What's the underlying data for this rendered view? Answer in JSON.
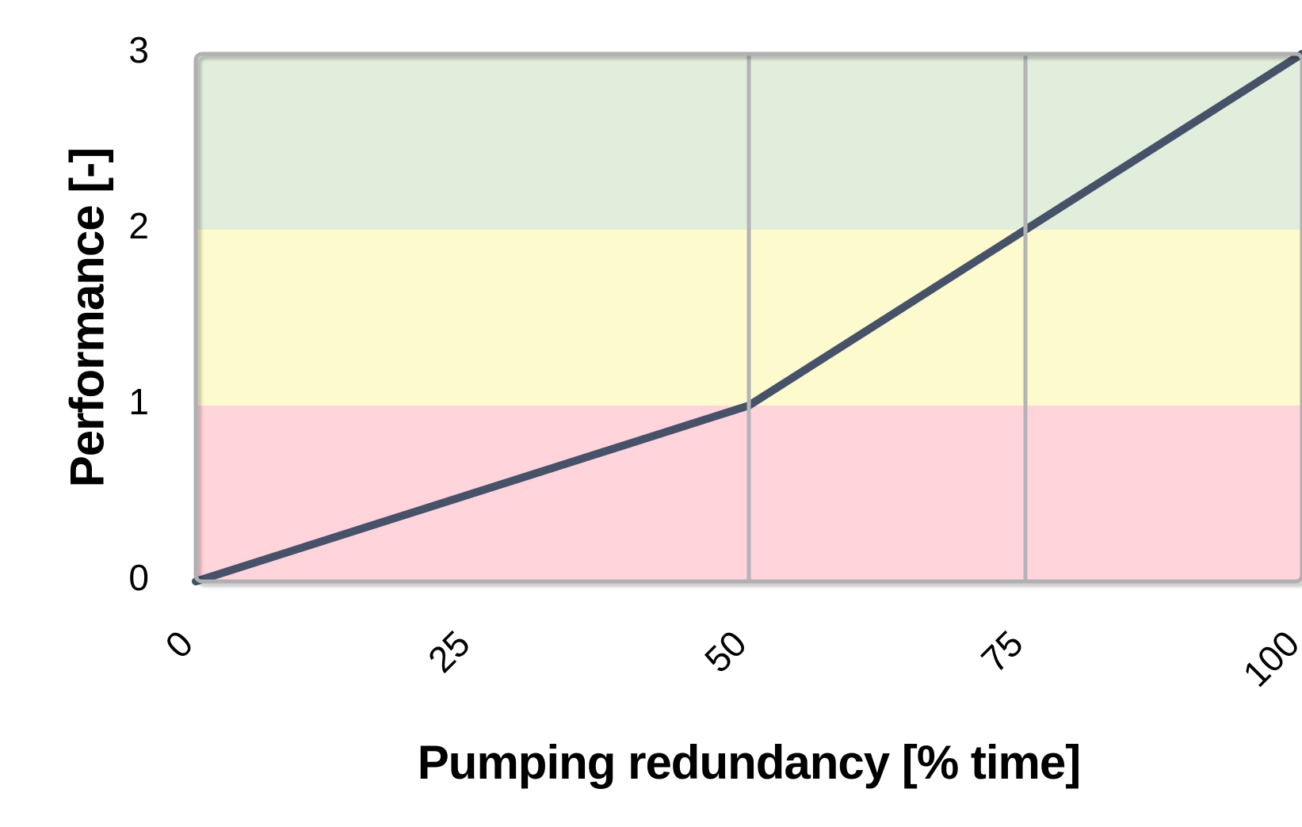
{
  "chart_data": {
    "type": "line",
    "title": "",
    "xlabel": "Pumping redundancy [% time]",
    "ylabel": "Performance [-]",
    "xlim": [
      0,
      100
    ],
    "ylim": [
      0,
      3
    ],
    "x_ticks": [
      0,
      25,
      50,
      75,
      100
    ],
    "x_tick_labels": [
      "0",
      "25",
      "50",
      "75",
      "100"
    ],
    "y_ticks": [
      0,
      1,
      2,
      3
    ],
    "y_tick_labels": [
      "0",
      "1",
      "2",
      "3"
    ],
    "grid_x": [
      50,
      75
    ],
    "legend": false,
    "series": [
      {
        "x": [
          0,
          50,
          75,
          100
        ],
        "y": [
          0,
          1,
          2,
          3
        ],
        "color": "#46526a",
        "width": 10
      }
    ],
    "background_bands": [
      {
        "from": 0,
        "to": 1,
        "color": "#ffd4da"
      },
      {
        "from": 1,
        "to": 2,
        "color": "#fdfacd"
      },
      {
        "from": 2,
        "to": 3,
        "color": "#e1eedc"
      }
    ],
    "colors": {
      "gridline": "#b4b4b6",
      "plot_border": "#b0b0b0",
      "tick_text": "#000000",
      "title_text": "#000000"
    }
  }
}
